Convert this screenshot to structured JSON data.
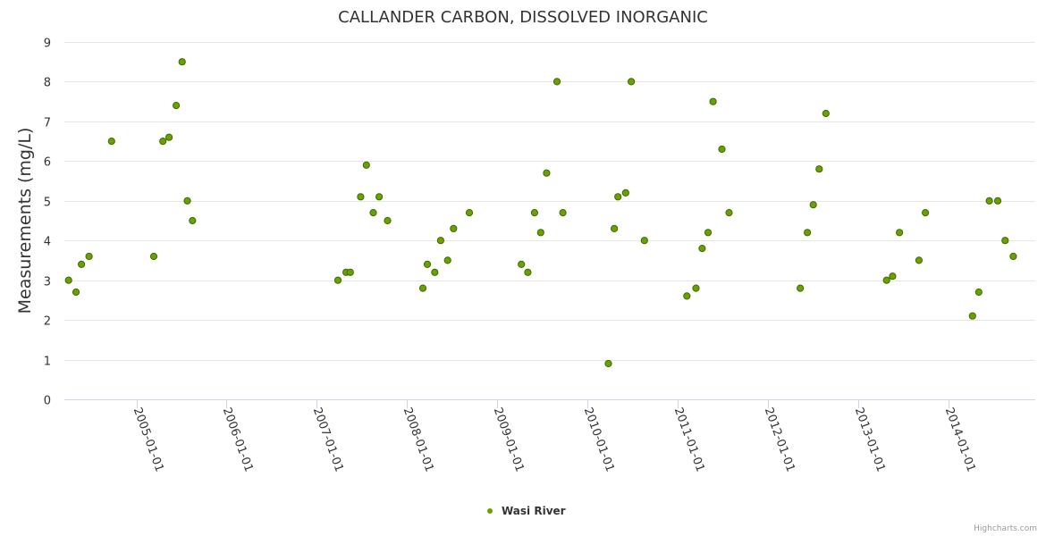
{
  "chart_data": {
    "type": "scatter",
    "title": "CALLANDER CARBON, DISSOLVED INORGANIC",
    "xlabel": "",
    "ylabel": "Measurements (mg/L)",
    "ylim": [
      0,
      9
    ],
    "xlim": [
      "2004-03-15",
      "2014-12-20"
    ],
    "y_ticks": [
      0,
      1,
      2,
      3,
      4,
      5,
      6,
      7,
      8,
      9
    ],
    "x_ticks": [
      "2005-01-01",
      "2006-01-01",
      "2007-01-01",
      "2008-01-01",
      "2009-01-01",
      "2010-01-01",
      "2011-01-01",
      "2012-01-01",
      "2013-01-01",
      "2014-01-01"
    ],
    "grid": true,
    "legend_position": "bottom-center",
    "series": [
      {
        "name": "Wasi River",
        "color": "#6aa100",
        "points": [
          [
            "2004-04-01",
            3.0
          ],
          [
            "2004-05-01",
            2.7
          ],
          [
            "2004-05-23",
            3.4
          ],
          [
            "2004-06-23",
            3.6
          ],
          [
            "2004-09-22",
            6.5
          ],
          [
            "2005-03-12",
            3.6
          ],
          [
            "2005-04-18",
            6.5
          ],
          [
            "2005-05-13",
            6.6
          ],
          [
            "2005-06-11",
            7.4
          ],
          [
            "2005-07-05",
            8.5
          ],
          [
            "2005-07-26",
            5.0
          ],
          [
            "2005-08-16",
            4.5
          ],
          [
            "2007-03-28",
            3.0
          ],
          [
            "2007-04-30",
            3.2
          ],
          [
            "2007-05-17",
            3.2
          ],
          [
            "2007-06-28",
            5.1
          ],
          [
            "2007-07-21",
            5.9
          ],
          [
            "2007-08-18",
            4.7
          ],
          [
            "2007-09-11",
            5.1
          ],
          [
            "2007-10-15",
            4.5
          ],
          [
            "2008-03-06",
            2.8
          ],
          [
            "2008-03-24",
            3.4
          ],
          [
            "2008-04-23",
            3.2
          ],
          [
            "2008-05-17",
            4.0
          ],
          [
            "2008-06-14",
            3.5
          ],
          [
            "2008-07-08",
            4.3
          ],
          [
            "2008-09-10",
            4.7
          ],
          [
            "2009-04-09",
            3.4
          ],
          [
            "2009-05-05",
            3.2
          ],
          [
            "2009-06-01",
            4.7
          ],
          [
            "2009-06-26",
            4.2
          ],
          [
            "2009-07-20",
            5.7
          ],
          [
            "2009-08-31",
            8.0
          ],
          [
            "2009-09-24",
            4.7
          ],
          [
            "2010-03-27",
            0.9
          ],
          [
            "2010-04-20",
            4.3
          ],
          [
            "2010-05-05",
            5.1
          ],
          [
            "2010-06-05",
            5.2
          ],
          [
            "2010-06-28",
            8.0
          ],
          [
            "2010-08-20",
            4.0
          ],
          [
            "2011-02-08",
            2.6
          ],
          [
            "2011-03-17",
            2.8
          ],
          [
            "2011-04-11",
            3.8
          ],
          [
            "2011-05-05",
            4.2
          ],
          [
            "2011-05-25",
            7.5
          ],
          [
            "2011-06-30",
            6.3
          ],
          [
            "2011-07-29",
            4.7
          ],
          [
            "2012-05-12",
            2.8
          ],
          [
            "2012-06-10",
            4.2
          ],
          [
            "2012-07-04",
            4.9
          ],
          [
            "2012-07-28",
            5.8
          ],
          [
            "2012-08-24",
            7.2
          ],
          [
            "2013-04-27",
            3.0
          ],
          [
            "2013-05-21",
            3.1
          ],
          [
            "2013-06-18",
            4.2
          ],
          [
            "2013-09-05",
            3.5
          ],
          [
            "2013-10-01",
            4.7
          ],
          [
            "2014-04-10",
            2.1
          ],
          [
            "2014-05-05",
            2.7
          ],
          [
            "2014-06-17",
            5.0
          ],
          [
            "2014-07-21",
            5.0
          ],
          [
            "2014-08-20",
            4.0
          ],
          [
            "2014-09-22",
            3.6
          ]
        ]
      }
    ]
  },
  "credits": "Highcharts.com"
}
